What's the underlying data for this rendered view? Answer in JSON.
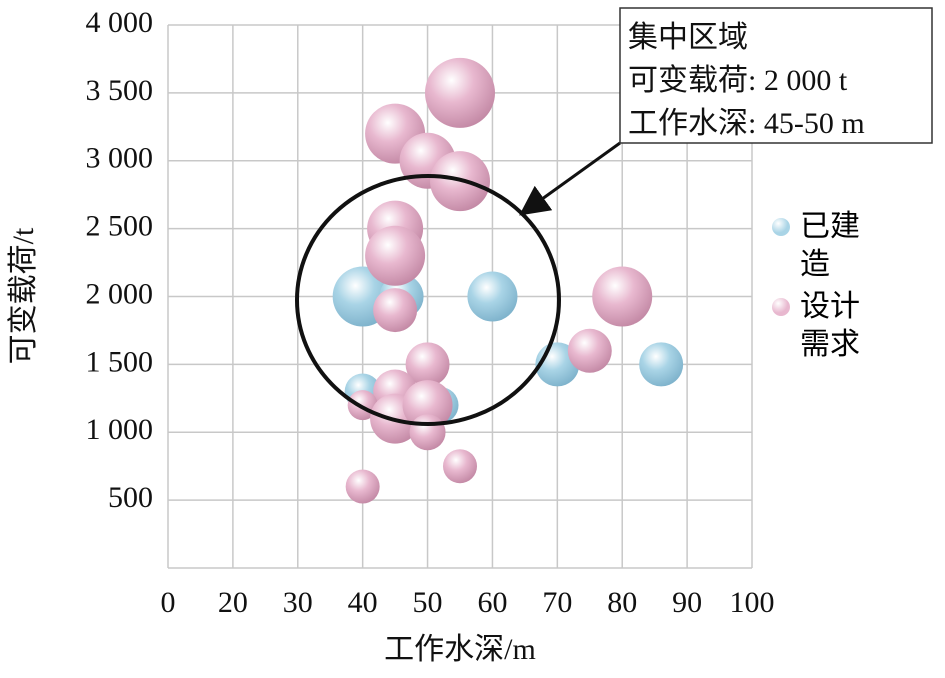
{
  "chart_data": {
    "type": "bubble",
    "x_label": "工作水深/m",
    "y_label": "可变载荷/t",
    "xlim": [
      0,
      100
    ],
    "xticks": [
      0,
      20,
      30,
      40,
      50,
      60,
      70,
      80,
      90,
      100
    ],
    "ylim": [
      0,
      4000
    ],
    "yticks": [
      500,
      {
        "value": 1000,
        "label": "1 000"
      },
      {
        "value": 1500,
        "label": "1 500"
      },
      {
        "value": 2000,
        "label": "2 000"
      },
      {
        "value": 2500,
        "label": "2 500"
      },
      {
        "value": 3000,
        "label": "3 000"
      },
      {
        "value": 3500,
        "label": "3 500"
      },
      {
        "value": 4000,
        "label": "4 000"
      }
    ],
    "grid": true,
    "legend": "right",
    "annotation": [
      "集中区域",
      "可变载荷: 2 000 t",
      "工作水深: 45-50 m"
    ],
    "series": [
      {
        "name": "已建造",
        "color": "#a9d4e6",
        "x": [
          40,
          46,
          60,
          70,
          86,
          40,
          52
        ],
        "values": [
          2000,
          2000,
          2000,
          1500,
          1500,
          1300,
          1200
        ],
        "sizes": [
          30,
          22,
          25,
          22,
          22,
          18,
          18
        ]
      },
      {
        "name": "设计需求",
        "color": "#e8b8cf",
        "x": [
          55,
          45,
          50,
          55,
          45,
          45,
          45,
          80,
          75,
          50,
          45,
          40,
          45,
          50,
          50,
          55,
          40
        ],
        "values": [
          3500,
          3200,
          3000,
          2850,
          2500,
          2300,
          1900,
          2000,
          1600,
          1500,
          1300,
          1200,
          1100,
          1200,
          1000,
          750,
          600
        ],
        "sizes": [
          35,
          30,
          28,
          30,
          28,
          30,
          22,
          30,
          22,
          22,
          22,
          15,
          25,
          25,
          18,
          17,
          17
        ]
      }
    ]
  }
}
